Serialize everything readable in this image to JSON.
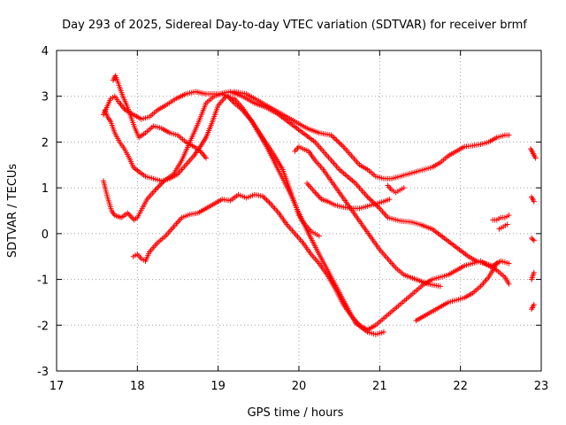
{
  "chart_data": {
    "type": "scatter",
    "title": "Day 293 of 2025, Sidereal Day-to-day VTEC variation (SDTVAR) for receiver brmf",
    "xlabel": "GPS time / hours",
    "ylabel": "SDTVAR / TECUs",
    "xlim": [
      17,
      23
    ],
    "ylim": [
      -3,
      4
    ],
    "xticks": [
      17,
      18,
      19,
      20,
      21,
      22,
      23
    ],
    "yticks": [
      -3,
      -2,
      -1,
      0,
      1,
      2,
      3,
      4
    ],
    "xtick_labels": [
      "17",
      "18",
      "19",
      "20",
      "21",
      "22",
      "23"
    ],
    "ytick_labels": [
      "-3",
      "-2",
      "-1",
      "0",
      "1",
      "2",
      "3",
      "4"
    ],
    "grid": true,
    "marker": "+",
    "color": "#ff0000",
    "series": [
      {
        "name": "s1",
        "x": [
          17.58,
          17.63,
          17.68,
          17.72,
          17.8,
          17.88,
          17.96,
          18.0,
          18.06,
          18.12,
          18.22,
          18.33,
          18.45,
          18.55,
          18.65,
          18.75,
          18.85,
          18.95,
          19.05,
          19.12,
          19.2,
          19.3,
          19.42,
          19.55,
          19.68,
          19.8,
          19.88,
          19.95,
          20.0,
          20.05,
          20.1,
          20.15,
          20.2,
          20.25
        ],
        "y": [
          1.15,
          0.8,
          0.5,
          0.4,
          0.35,
          0.45,
          0.3,
          0.35,
          0.55,
          0.75,
          0.95,
          1.15,
          1.3,
          1.6,
          2.0,
          2.4,
          2.85,
          3.0,
          3.05,
          3.0,
          2.85,
          2.7,
          2.45,
          2.1,
          1.75,
          1.4,
          1.0,
          0.65,
          0.4,
          0.25,
          0.15,
          0.05,
          0.0,
          -0.05
        ]
      },
      {
        "name": "s2",
        "x": [
          17.58,
          17.62,
          17.67,
          17.72,
          17.78,
          17.85,
          17.95,
          18.05,
          18.15,
          18.25,
          18.35,
          18.48,
          18.6,
          18.72,
          18.85,
          19.0,
          19.15,
          19.3,
          19.45,
          19.6,
          19.75,
          19.9,
          20.05,
          20.2,
          20.35,
          20.5,
          20.7,
          20.85,
          21.0,
          21.1,
          21.25,
          21.4,
          21.5,
          21.65,
          21.8,
          21.95,
          22.1,
          22.2,
          22.3,
          22.4,
          22.5,
          22.6
        ],
        "y": [
          2.6,
          2.75,
          2.95,
          3.0,
          2.85,
          2.7,
          2.6,
          2.5,
          2.55,
          2.7,
          2.8,
          2.95,
          3.05,
          3.1,
          3.05,
          3.05,
          3.1,
          3.0,
          2.85,
          2.75,
          2.6,
          2.4,
          2.2,
          2.0,
          1.7,
          1.4,
          1.1,
          0.8,
          0.55,
          0.35,
          0.28,
          0.25,
          0.2,
          0.1,
          -0.1,
          -0.3,
          -0.5,
          -0.6,
          -0.65,
          -0.7,
          -0.6,
          -0.65
        ]
      },
      {
        "name": "s3",
        "x": [
          17.6,
          17.63,
          17.67,
          17.72,
          17.78,
          17.84,
          17.9,
          17.95,
          18.02,
          18.1,
          18.2,
          18.3,
          18.4,
          18.5,
          18.6,
          18.7,
          18.78,
          18.85,
          18.92,
          19.0,
          19.1,
          19.2,
          19.3,
          19.4,
          19.5,
          19.6,
          19.7,
          19.8,
          19.9,
          20.0,
          20.12,
          20.25,
          20.4,
          20.55,
          20.7,
          20.85,
          20.95,
          21.05
        ],
        "y": [
          2.7,
          2.55,
          2.45,
          2.2,
          2.0,
          1.85,
          1.65,
          1.45,
          1.35,
          1.25,
          1.2,
          1.15,
          1.2,
          1.3,
          1.5,
          1.7,
          1.9,
          2.1,
          2.4,
          2.8,
          3.0,
          2.95,
          2.75,
          2.5,
          2.2,
          1.9,
          1.55,
          1.2,
          0.85,
          0.45,
          0.0,
          -0.45,
          -0.95,
          -1.45,
          -1.95,
          -2.15,
          -2.2,
          -2.15
        ]
      },
      {
        "name": "s4",
        "x": [
          17.7,
          17.73,
          17.78,
          17.82,
          17.87,
          17.92,
          17.97,
          18.02,
          18.1,
          18.2,
          18.3,
          18.4,
          18.5,
          18.6,
          18.7,
          18.78,
          18.85
        ],
        "y": [
          3.35,
          3.45,
          3.2,
          3.0,
          2.8,
          2.55,
          2.3,
          2.1,
          2.2,
          2.35,
          2.3,
          2.2,
          2.15,
          2.0,
          1.9,
          1.8,
          1.65
        ]
      },
      {
        "name": "s5",
        "x": [
          17.95,
          18.0,
          18.05,
          18.1,
          18.15,
          18.25,
          18.35,
          18.45,
          18.55,
          18.65,
          18.75,
          18.85,
          18.95,
          19.05,
          19.15,
          19.25,
          19.35,
          19.45,
          19.55,
          19.65,
          19.75,
          19.85,
          19.95,
          20.05,
          20.15,
          20.25,
          20.35,
          20.45,
          20.55,
          20.65,
          20.75,
          20.85,
          20.95,
          21.05,
          21.15,
          21.25,
          21.35,
          21.45,
          21.55,
          21.65,
          21.75,
          21.85,
          21.95,
          22.05,
          22.15,
          22.25,
          22.35,
          22.45,
          22.55,
          22.6
        ],
        "y": [
          -0.5,
          -0.45,
          -0.55,
          -0.6,
          -0.4,
          -0.2,
          -0.05,
          0.15,
          0.35,
          0.42,
          0.45,
          0.55,
          0.65,
          0.75,
          0.72,
          0.85,
          0.78,
          0.85,
          0.82,
          0.65,
          0.45,
          0.2,
          0.0,
          -0.2,
          -0.45,
          -0.65,
          -0.9,
          -1.2,
          -1.55,
          -1.8,
          -2.0,
          -2.1,
          -2.0,
          -1.85,
          -1.7,
          -1.55,
          -1.4,
          -1.25,
          -1.1,
          -1.0,
          -0.95,
          -0.9,
          -0.8,
          -0.7,
          -0.65,
          -0.6,
          -0.7,
          -0.8,
          -0.95,
          -1.1
        ]
      },
      {
        "name": "s6",
        "x": [
          19.2,
          19.35,
          19.5,
          19.65,
          19.8,
          19.95,
          20.1,
          20.25,
          20.4,
          20.55,
          20.65,
          20.75,
          20.85,
          20.95,
          21.05,
          21.15,
          21.25,
          21.35,
          21.45,
          21.55,
          21.65,
          21.75,
          21.85,
          21.95,
          22.05,
          22.15,
          22.25,
          22.35,
          22.45,
          22.55,
          22.6
        ],
        "y": [
          3.1,
          3.05,
          2.9,
          2.75,
          2.6,
          2.45,
          2.3,
          2.2,
          2.15,
          1.9,
          1.7,
          1.5,
          1.4,
          1.25,
          1.2,
          1.2,
          1.25,
          1.3,
          1.35,
          1.4,
          1.45,
          1.55,
          1.7,
          1.8,
          1.9,
          1.92,
          1.95,
          2.0,
          2.1,
          2.15,
          2.15
        ]
      },
      {
        "name": "s7",
        "x": [
          19.95,
          20.0,
          20.05,
          20.12,
          20.2,
          20.3,
          20.4,
          20.5,
          20.6,
          20.7,
          20.8,
          20.9,
          21.0,
          21.1,
          21.2,
          21.3,
          21.45,
          21.6,
          21.75
        ],
        "y": [
          1.8,
          1.9,
          1.85,
          1.8,
          1.6,
          1.4,
          1.15,
          0.9,
          0.65,
          0.4,
          0.15,
          -0.1,
          -0.35,
          -0.55,
          -0.75,
          -0.9,
          -1.0,
          -1.1,
          -1.15
        ]
      },
      {
        "name": "s8",
        "x": [
          20.1,
          20.15,
          20.2,
          20.28,
          20.36,
          20.45,
          20.55,
          20.65,
          20.75,
          20.85,
          20.95,
          21.05,
          21.12
        ],
        "y": [
          1.1,
          1.0,
          0.9,
          0.75,
          0.7,
          0.62,
          0.58,
          0.55,
          0.55,
          0.6,
          0.65,
          0.7,
          0.75
        ]
      },
      {
        "name": "s9",
        "x": [
          21.1,
          21.15,
          21.2,
          21.25,
          21.3
        ],
        "y": [
          1.05,
          0.95,
          0.9,
          0.95,
          1.0
        ]
      },
      {
        "name": "s10",
        "x": [
          21.45,
          21.55,
          21.65,
          21.75,
          21.85,
          21.95,
          22.05,
          22.15,
          22.25,
          22.35,
          22.4,
          22.45
        ],
        "y": [
          -1.9,
          -1.8,
          -1.7,
          -1.6,
          -1.5,
          -1.45,
          -1.4,
          -1.3,
          -1.15,
          -0.95,
          -0.8,
          -0.65
        ]
      },
      {
        "name": "s11",
        "x": [
          22.4,
          22.45,
          22.5,
          22.55,
          22.6
        ],
        "y": [
          0.3,
          0.3,
          0.35,
          0.35,
          0.4
        ]
      },
      {
        "name": "s12",
        "x": [
          22.48,
          22.53,
          22.58
        ],
        "y": [
          0.1,
          0.15,
          0.2
        ]
      },
      {
        "name": "s13",
        "x": [
          22.87,
          22.9,
          22.93
        ],
        "y": [
          1.85,
          1.75,
          1.65
        ]
      },
      {
        "name": "s14",
        "x": [
          22.88,
          22.91
        ],
        "y": [
          0.8,
          0.7
        ]
      },
      {
        "name": "s15",
        "x": [
          22.88,
          22.91
        ],
        "y": [
          -0.1,
          -0.15
        ]
      },
      {
        "name": "s16",
        "x": [
          22.88,
          22.91
        ],
        "y": [
          -1.0,
          -0.85
        ]
      },
      {
        "name": "s17",
        "x": [
          22.88,
          22.91
        ],
        "y": [
          -1.65,
          -1.55
        ]
      }
    ]
  }
}
